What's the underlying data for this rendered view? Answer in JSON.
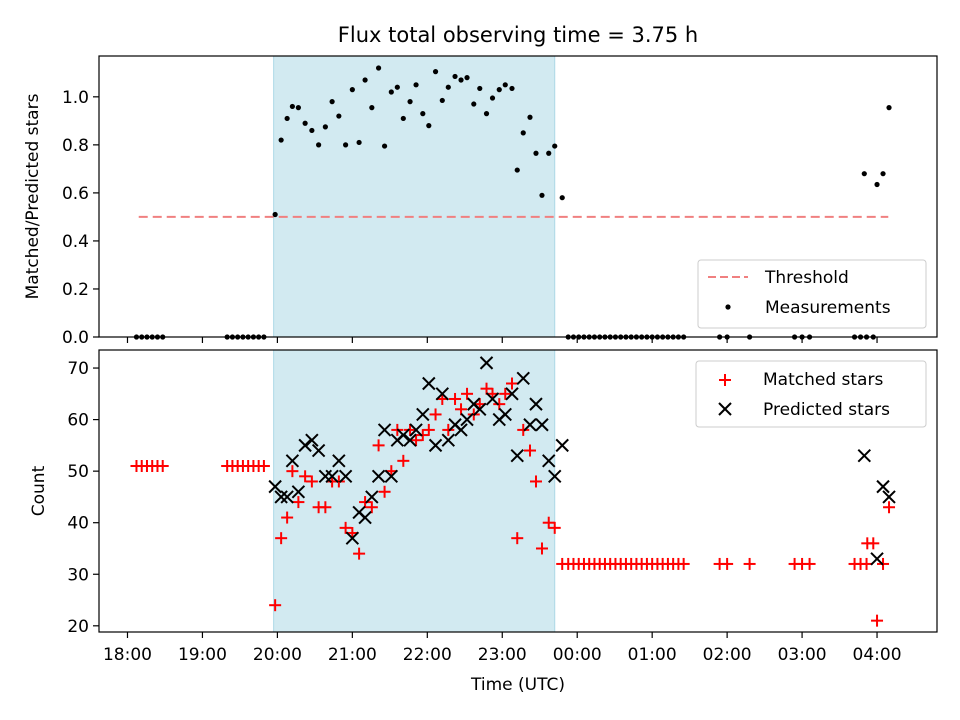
{
  "title": "Flux total observing time = 3.75 h",
  "colors": {
    "shade": "#add8e6",
    "threshold": "#f08080",
    "measurement": "#000000",
    "matched": "#ff0000",
    "predicted": "#000000"
  },
  "x_ticks": [
    "18:00",
    "19:00",
    "20:00",
    "21:00",
    "22:00",
    "23:00",
    "00:00",
    "01:00",
    "02:00",
    "03:00",
    "04:00"
  ],
  "x_label": "Time (UTC)",
  "chart_data": [
    {
      "type": "scatter",
      "panel": "top",
      "ylabel": "Matched/Predicted stars",
      "xlim": [
        -0.38,
        10.8
      ],
      "ylim": [
        0,
        1.17
      ],
      "yticks": [
        "0.0",
        "0.2",
        "0.4",
        "0.6",
        "0.8",
        "1.0"
      ],
      "ytick_values": [
        0,
        0.2,
        0.4,
        0.6,
        0.8,
        1.0
      ],
      "shaded_x": [
        1.95,
        5.7
      ],
      "legend": {
        "location": "lower right",
        "threshold_label": "Threshold",
        "measurements_label": "Measurements"
      },
      "threshold": {
        "x": [
          0.15,
          10.15
        ],
        "y": 0.5
      },
      "measurements": [
        [
          0.12,
          0
        ],
        [
          0.19,
          0
        ],
        [
          0.26,
          0
        ],
        [
          0.33,
          0
        ],
        [
          0.4,
          0
        ],
        [
          0.47,
          0
        ],
        [
          1.33,
          0
        ],
        [
          1.4,
          0
        ],
        [
          1.47,
          0
        ],
        [
          1.54,
          0
        ],
        [
          1.61,
          0
        ],
        [
          1.68,
          0
        ],
        [
          1.75,
          0
        ],
        [
          1.82,
          0
        ],
        [
          1.97,
          0.51
        ],
        [
          2.05,
          0.82
        ],
        [
          2.13,
          0.91
        ],
        [
          2.2,
          0.96
        ],
        [
          2.28,
          0.955
        ],
        [
          2.37,
          0.89
        ],
        [
          2.46,
          0.86
        ],
        [
          2.55,
          0.8
        ],
        [
          2.64,
          0.875
        ],
        [
          2.73,
          0.98
        ],
        [
          2.82,
          0.92
        ],
        [
          2.91,
          0.8
        ],
        [
          3.0,
          1.03
        ],
        [
          3.09,
          0.81
        ],
        [
          3.17,
          1.07
        ],
        [
          3.26,
          0.955
        ],
        [
          3.35,
          1.12
        ],
        [
          3.43,
          0.795
        ],
        [
          3.52,
          1.02
        ],
        [
          3.6,
          1.04
        ],
        [
          3.68,
          0.91
        ],
        [
          3.77,
          0.98
        ],
        [
          3.85,
          1.05
        ],
        [
          3.94,
          0.93
        ],
        [
          4.02,
          0.88
        ],
        [
          4.11,
          1.105
        ],
        [
          4.2,
          0.985
        ],
        [
          4.28,
          1.04
        ],
        [
          4.37,
          1.085
        ],
        [
          4.45,
          1.07
        ],
        [
          4.53,
          1.08
        ],
        [
          4.62,
          0.97
        ],
        [
          4.7,
          1.035
        ],
        [
          4.79,
          0.93
        ],
        [
          4.87,
          0.995
        ],
        [
          4.96,
          1.03
        ],
        [
          5.04,
          1.05
        ],
        [
          5.13,
          1.035
        ],
        [
          5.2,
          0.695
        ],
        [
          5.28,
          0.85
        ],
        [
          5.37,
          0.915
        ],
        [
          5.45,
          0.765
        ],
        [
          5.53,
          0.59
        ],
        [
          5.62,
          0.765
        ],
        [
          5.7,
          0.795
        ],
        [
          5.8,
          0.58
        ],
        [
          5.88,
          0
        ],
        [
          5.95,
          0
        ],
        [
          6.02,
          0
        ],
        [
          6.09,
          0
        ],
        [
          6.16,
          0
        ],
        [
          6.23,
          0
        ],
        [
          6.3,
          0
        ],
        [
          6.37,
          0
        ],
        [
          6.44,
          0
        ],
        [
          6.51,
          0
        ],
        [
          6.58,
          0
        ],
        [
          6.65,
          0
        ],
        [
          6.72,
          0
        ],
        [
          6.79,
          0
        ],
        [
          6.86,
          0
        ],
        [
          6.93,
          0
        ],
        [
          7.0,
          0
        ],
        [
          7.07,
          0
        ],
        [
          7.14,
          0
        ],
        [
          7.21,
          0
        ],
        [
          7.28,
          0
        ],
        [
          7.35,
          0
        ],
        [
          7.42,
          0
        ],
        [
          7.9,
          0
        ],
        [
          8.0,
          0
        ],
        [
          8.3,
          0
        ],
        [
          8.9,
          0
        ],
        [
          9.0,
          0
        ],
        [
          9.1,
          0
        ],
        [
          9.7,
          0
        ],
        [
          9.78,
          0
        ],
        [
          9.86,
          0
        ],
        [
          9.95,
          0
        ],
        [
          9.83,
          0.68
        ],
        [
          10.0,
          0.635
        ],
        [
          10.08,
          0.68
        ],
        [
          10.16,
          0.955
        ]
      ]
    },
    {
      "type": "scatter",
      "panel": "bottom",
      "ylabel": "Count",
      "xlim": [
        -0.38,
        10.8
      ],
      "ylim": [
        18.8,
        73.5
      ],
      "yticks": [
        "20",
        "30",
        "40",
        "50",
        "60",
        "70"
      ],
      "ytick_values": [
        20,
        30,
        40,
        50,
        60,
        70
      ],
      "shaded_x": [
        1.95,
        5.7
      ],
      "legend": {
        "location": "upper right",
        "matched_label": "Matched stars",
        "predicted_label": "Predicted stars"
      },
      "matched": [
        [
          0.12,
          51
        ],
        [
          0.19,
          51
        ],
        [
          0.26,
          51
        ],
        [
          0.33,
          51
        ],
        [
          0.4,
          51
        ],
        [
          0.47,
          51
        ],
        [
          1.33,
          51
        ],
        [
          1.4,
          51
        ],
        [
          1.47,
          51
        ],
        [
          1.54,
          51
        ],
        [
          1.61,
          51
        ],
        [
          1.68,
          51
        ],
        [
          1.75,
          51
        ],
        [
          1.82,
          51
        ],
        [
          1.97,
          24
        ],
        [
          2.05,
          37
        ],
        [
          2.13,
          41
        ],
        [
          2.2,
          50
        ],
        [
          2.28,
          44
        ],
        [
          2.37,
          49
        ],
        [
          2.46,
          48
        ],
        [
          2.55,
          43
        ],
        [
          2.64,
          43
        ],
        [
          2.73,
          48
        ],
        [
          2.82,
          48
        ],
        [
          2.91,
          39
        ],
        [
          3.0,
          38
        ],
        [
          3.09,
          34
        ],
        [
          3.17,
          44
        ],
        [
          3.26,
          43
        ],
        [
          3.35,
          55
        ],
        [
          3.43,
          46
        ],
        [
          3.52,
          50
        ],
        [
          3.6,
          58
        ],
        [
          3.68,
          52
        ],
        [
          3.77,
          58
        ],
        [
          3.85,
          56
        ],
        [
          3.94,
          57
        ],
        [
          4.02,
          58
        ],
        [
          4.11,
          61
        ],
        [
          4.2,
          64
        ],
        [
          4.28,
          58
        ],
        [
          4.37,
          64
        ],
        [
          4.45,
          62
        ],
        [
          4.53,
          65
        ],
        [
          4.62,
          61
        ],
        [
          4.7,
          63
        ],
        [
          4.79,
          66
        ],
        [
          4.87,
          65
        ],
        [
          4.96,
          63
        ],
        [
          5.04,
          65
        ],
        [
          5.13,
          67
        ],
        [
          5.2,
          37
        ],
        [
          5.28,
          58
        ],
        [
          5.37,
          54
        ],
        [
          5.45,
          48
        ],
        [
          5.53,
          35
        ],
        [
          5.62,
          40
        ],
        [
          5.7,
          39
        ],
        [
          5.8,
          32
        ],
        [
          5.88,
          32
        ],
        [
          5.95,
          32
        ],
        [
          6.02,
          32
        ],
        [
          6.09,
          32
        ],
        [
          6.16,
          32
        ],
        [
          6.23,
          32
        ],
        [
          6.3,
          32
        ],
        [
          6.37,
          32
        ],
        [
          6.44,
          32
        ],
        [
          6.51,
          32
        ],
        [
          6.58,
          32
        ],
        [
          6.65,
          32
        ],
        [
          6.72,
          32
        ],
        [
          6.79,
          32
        ],
        [
          6.86,
          32
        ],
        [
          6.93,
          32
        ],
        [
          7.0,
          32
        ],
        [
          7.07,
          32
        ],
        [
          7.14,
          32
        ],
        [
          7.21,
          32
        ],
        [
          7.28,
          32
        ],
        [
          7.35,
          32
        ],
        [
          7.42,
          32
        ],
        [
          7.9,
          32
        ],
        [
          8.0,
          32
        ],
        [
          8.3,
          32
        ],
        [
          8.9,
          32
        ],
        [
          9.0,
          32
        ],
        [
          9.1,
          32
        ],
        [
          9.7,
          32
        ],
        [
          9.78,
          32
        ],
        [
          9.86,
          32
        ],
        [
          9.87,
          36
        ],
        [
          9.95,
          36
        ],
        [
          10.0,
          21
        ],
        [
          10.08,
          32
        ],
        [
          10.16,
          43
        ]
      ],
      "predicted": [
        [
          1.97,
          47
        ],
        [
          2.05,
          45
        ],
        [
          2.13,
          45
        ],
        [
          2.2,
          52
        ],
        [
          2.28,
          46
        ],
        [
          2.37,
          55
        ],
        [
          2.46,
          56
        ],
        [
          2.55,
          54
        ],
        [
          2.64,
          49
        ],
        [
          2.73,
          49
        ],
        [
          2.82,
          52
        ],
        [
          2.91,
          49
        ],
        [
          3.0,
          37
        ],
        [
          3.09,
          42
        ],
        [
          3.17,
          41
        ],
        [
          3.26,
          45
        ],
        [
          3.35,
          49
        ],
        [
          3.43,
          58
        ],
        [
          3.52,
          49
        ],
        [
          3.6,
          56
        ],
        [
          3.68,
          57
        ],
        [
          3.77,
          56
        ],
        [
          3.85,
          58
        ],
        [
          3.94,
          61
        ],
        [
          4.02,
          67
        ],
        [
          4.11,
          55
        ],
        [
          4.2,
          65
        ],
        [
          4.28,
          56
        ],
        [
          4.37,
          59
        ],
        [
          4.45,
          58
        ],
        [
          4.53,
          60
        ],
        [
          4.62,
          63
        ],
        [
          4.7,
          62
        ],
        [
          4.79,
          71
        ],
        [
          4.87,
          64
        ],
        [
          4.96,
          60
        ],
        [
          5.04,
          61
        ],
        [
          5.13,
          65
        ],
        [
          5.2,
          53
        ],
        [
          5.28,
          68
        ],
        [
          5.37,
          59
        ],
        [
          5.45,
          63
        ],
        [
          5.53,
          59
        ],
        [
          5.62,
          52
        ],
        [
          5.7,
          49
        ],
        [
          5.8,
          55
        ],
        [
          9.83,
          53
        ],
        [
          10.0,
          33
        ],
        [
          10.08,
          47
        ],
        [
          10.16,
          45
        ]
      ]
    }
  ]
}
